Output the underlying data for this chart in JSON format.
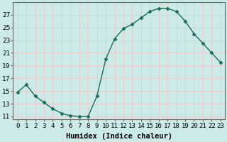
{
  "x": [
    0,
    1,
    2,
    3,
    4,
    5,
    6,
    7,
    8,
    9,
    10,
    11,
    12,
    13,
    14,
    15,
    16,
    17,
    18,
    19,
    20,
    21,
    22,
    23
  ],
  "y": [
    14.8,
    16.0,
    14.2,
    13.2,
    12.2,
    11.5,
    11.1,
    11.0,
    11.0,
    14.2,
    20.0,
    23.2,
    24.8,
    25.5,
    26.5,
    27.5,
    28.0,
    28.0,
    27.5,
    26.0,
    24.0,
    22.5,
    21.0,
    19.5
  ],
  "line_color": "#1a6b5a",
  "marker": "D",
  "marker_size": 2.5,
  "bg_color": "#cceae8",
  "grid_color": "#e8c8c8",
  "xlabel": "Humidex (Indice chaleur)",
  "ylabel": "",
  "xlim": [
    -0.5,
    23.5
  ],
  "ylim": [
    10.5,
    29.0
  ],
  "yticks": [
    11,
    13,
    15,
    17,
    19,
    21,
    23,
    25,
    27
  ],
  "xtick_labels": [
    "0",
    "1",
    "2",
    "3",
    "4",
    "5",
    "6",
    "7",
    "8",
    "9",
    "10",
    "11",
    "12",
    "13",
    "14",
    "15",
    "16",
    "17",
    "18",
    "19",
    "20",
    "21",
    "22",
    "23"
  ],
  "xlabel_fontsize": 7.5,
  "tick_fontsize": 6.5
}
